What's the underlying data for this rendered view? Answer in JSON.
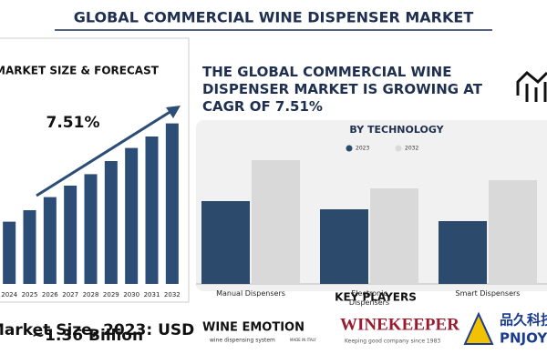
{
  "header": {
    "title": "GLOBAL COMMERCIAL WINE DISPENSER MARKET"
  },
  "headline": "THE GLOBAL COMMERCIAL WINE DISPENSER MARKET IS GROWING AT CAGR OF 7.51%",
  "market_size": {
    "line1": "Market Size, 2023: USD",
    "line2": "~1.36 Billion"
  },
  "key_players": {
    "title": "KEY PLAYERS",
    "players": [
      {
        "name": "WINE EMOTION",
        "tagline": "wine dispensing system",
        "note": "MADE IN ITALY"
      },
      {
        "name": "WINEKEEPER",
        "tagline": "Keeping good company since 1983"
      },
      {
        "name": "品久科技",
        "tagline": "PNJOY"
      }
    ]
  },
  "chart_data": [
    {
      "type": "bar",
      "title": "MARKET SIZE & FORECAST",
      "annotation": "7.51%",
      "categories": [
        "2024",
        "2025",
        "2026",
        "2027",
        "2028",
        "2029",
        "2030",
        "2031",
        "2032"
      ],
      "values": [
        38,
        45,
        53,
        60,
        67,
        75,
        83,
        90,
        98
      ],
      "color": "#2c4d75",
      "ylim": [
        0,
        100
      ]
    },
    {
      "type": "bar",
      "title": "BY TECHNOLOGY",
      "categories": [
        "Manual Dispensers",
        "Electronic Dispensers",
        "Smart Dispensers"
      ],
      "series": [
        {
          "name": "2023",
          "color": "#2b4a6c",
          "values": [
            91,
            82,
            69
          ]
        },
        {
          "name": "2032",
          "color": "#d9d9d9",
          "values": [
            136,
            105,
            114
          ]
        }
      ],
      "ylim": [
        0,
        150
      ]
    }
  ]
}
